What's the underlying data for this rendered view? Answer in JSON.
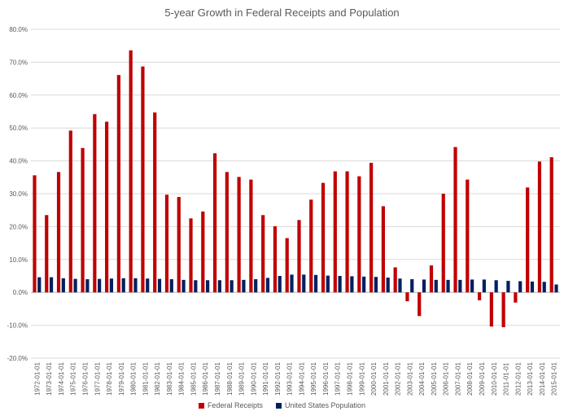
{
  "chart_data": {
    "type": "bar",
    "title": "5-year Growth in Federal Receipts and Population",
    "xlabel": "",
    "ylabel": "",
    "ylim": [
      -20,
      80
    ],
    "y_ticks": [
      80,
      70,
      60,
      50,
      40,
      30,
      20,
      10,
      0,
      -10,
      -20
    ],
    "y_tick_format": "percent_1dp",
    "grid": true,
    "legend_position": "bottom",
    "categories": [
      "1972-01-01",
      "1973-01-01",
      "1974-01-01",
      "1975-01-01",
      "1976-01-01",
      "1977-01-01",
      "1978-01-01",
      "1979-01-01",
      "1980-01-01",
      "1981-01-01",
      "1982-01-01",
      "1983-01-01",
      "1984-01-01",
      "1985-01-01",
      "1986-01-01",
      "1987-01-01",
      "1988-01-01",
      "1989-01-01",
      "1990-01-01",
      "1991-01-01",
      "1992-01-01",
      "1993-01-01",
      "1994-01-01",
      "1995-01-01",
      "1996-01-01",
      "1997-01-01",
      "1998-01-01",
      "1999-01-01",
      "2000-01-01",
      "2001-01-01",
      "2002-01-01",
      "2003-01-01",
      "2004-01-01",
      "2005-01-01",
      "2006-01-01",
      "2007-01-01",
      "2008-01-01",
      "2009-01-01",
      "2010-01-01",
      "2011-01-01",
      "2012-01-01",
      "2013-01-01",
      "2014-01-01",
      "2015-01-01"
    ],
    "series": [
      {
        "name": "Federal Receipts",
        "color": "#C00000",
        "values": [
          35.6,
          23.5,
          36.6,
          49.2,
          43.9,
          54.2,
          51.9,
          66.1,
          73.6,
          68.7,
          54.7,
          29.7,
          29.0,
          22.5,
          24.6,
          42.3,
          36.6,
          35.1,
          34.3,
          23.5,
          20.1,
          16.5,
          22.0,
          28.2,
          33.3,
          36.8,
          36.8,
          35.3,
          39.4,
          26.2,
          7.6,
          -2.7,
          -7.2,
          8.2,
          30.0,
          44.2,
          34.3,
          -2.4,
          -10.4,
          -10.6,
          -3.1,
          31.9,
          39.8,
          41.1
        ]
      },
      {
        "name": "United States Population",
        "color": "#002060",
        "values": [
          4.6,
          4.6,
          4.3,
          4.1,
          4.0,
          4.1,
          4.2,
          4.3,
          4.3,
          4.2,
          4.1,
          4.0,
          3.8,
          3.7,
          3.7,
          3.7,
          3.7,
          3.8,
          4.0,
          4.4,
          5.0,
          5.4,
          5.4,
          5.3,
          5.1,
          5.0,
          4.9,
          4.8,
          4.7,
          4.5,
          4.2,
          4.0,
          3.9,
          3.8,
          3.8,
          3.8,
          3.9,
          3.9,
          3.7,
          3.5,
          3.4,
          3.3,
          3.2,
          2.4
        ]
      }
    ]
  }
}
